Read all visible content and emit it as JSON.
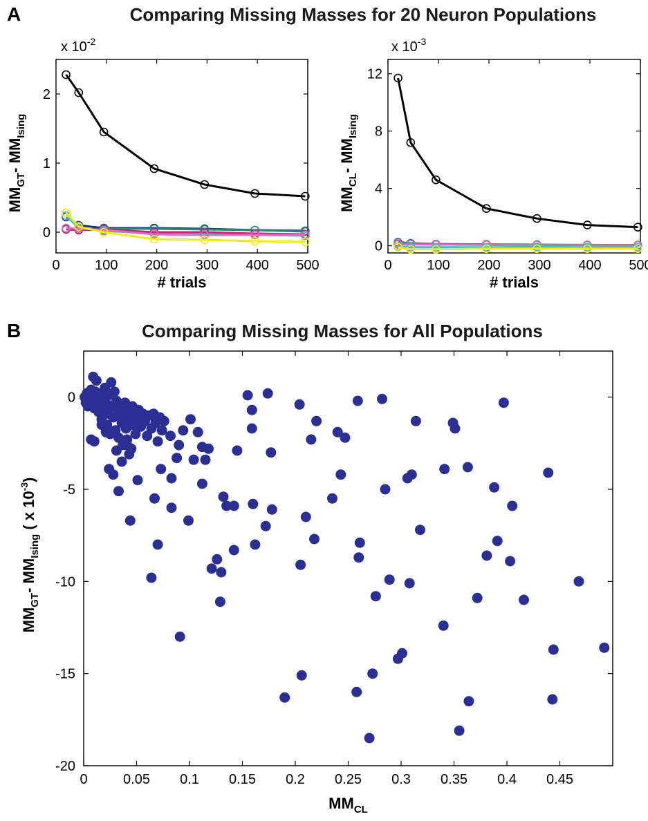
{
  "panel_a": {
    "letter": "A",
    "title": "Comparing Missing Masses for 20 Neuron Populations"
  },
  "panel_b": {
    "letter": "B"
  },
  "chart_data": [
    {
      "type": "line",
      "title": "",
      "xlabel": "# trials",
      "ylabel": "MM_GT - MM_Ising",
      "ylabel_parts": {
        "main1": "MM",
        "sub1": "GT",
        "sep": "- ",
        "main2": "MM",
        "sub2": "Ising"
      },
      "exponent_label": "x 10",
      "exponent_power": "-2",
      "xlim": [
        0,
        500
      ],
      "ylim": [
        -0.3,
        2.5
      ],
      "xticks": [
        0,
        100,
        200,
        300,
        400,
        500
      ],
      "yticks": [
        0,
        1,
        2
      ],
      "x": [
        20,
        45,
        95,
        195,
        295,
        395,
        495
      ],
      "series": [
        {
          "color": "#000000",
          "values": [
            2.28,
            2.02,
            1.45,
            0.92,
            0.69,
            0.56,
            0.52
          ]
        },
        {
          "color": "#1f2a8c",
          "values": [
            0.22,
            0.1,
            0.06,
            0.06,
            0.05,
            0.03,
            0.02
          ]
        },
        {
          "color": "#1f8a6a",
          "values": [
            0.05,
            0.04,
            0.05,
            0.05,
            0.04,
            0.03,
            0.01
          ]
        },
        {
          "color": "#3fb8d8",
          "values": [
            0.24,
            0.06,
            0.02,
            -0.02,
            -0.03,
            -0.04,
            -0.05
          ]
        },
        {
          "color": "#cc2277",
          "values": [
            0.04,
            0.03,
            0.04,
            0.0,
            0.0,
            -0.02,
            -0.03
          ]
        },
        {
          "color": "#d070c0",
          "values": [
            0.06,
            0.05,
            0.03,
            -0.03,
            -0.04,
            -0.04,
            -0.04
          ]
        },
        {
          "color": "#eeee11",
          "values": [
            0.28,
            0.08,
            0.0,
            -0.1,
            -0.11,
            -0.13,
            -0.14
          ]
        }
      ]
    },
    {
      "type": "line",
      "title": "",
      "xlabel": "# trials",
      "ylabel": "MM_CL - MM_Ising",
      "ylabel_parts": {
        "main1": "MM",
        "sub1": "CL",
        "sep": "- ",
        "main2": "MM",
        "sub2": "Ising"
      },
      "exponent_label": "x 10",
      "exponent_power": "-3",
      "xlim": [
        0,
        500
      ],
      "ylim": [
        -0.5,
        13
      ],
      "xticks": [
        0,
        100,
        200,
        300,
        400,
        500
      ],
      "yticks": [
        0,
        4,
        8,
        12
      ],
      "x": [
        20,
        45,
        95,
        195,
        295,
        395,
        495
      ],
      "series": [
        {
          "color": "#000000",
          "values": [
            11.7,
            7.2,
            4.6,
            2.6,
            1.9,
            1.45,
            1.3
          ]
        },
        {
          "color": "#1f8a6a",
          "values": [
            0.25,
            0.18,
            0.12,
            0.1,
            0.08,
            0.06,
            0.05
          ]
        },
        {
          "color": "#cc2277",
          "values": [
            0.15,
            0.12,
            0.1,
            0.08,
            0.06,
            0.05,
            0.04
          ]
        },
        {
          "color": "#d070c0",
          "values": [
            0.1,
            0.1,
            0.08,
            0.06,
            0.05,
            0.04,
            0.03
          ]
        },
        {
          "color": "#3fb8d8",
          "values": [
            -0.05,
            -0.1,
            -0.1,
            -0.1,
            -0.08,
            -0.1,
            -0.1
          ]
        },
        {
          "color": "#eeee11",
          "values": [
            -0.1,
            -0.25,
            -0.25,
            -0.2,
            -0.2,
            -0.2,
            -0.2
          ]
        }
      ]
    },
    {
      "type": "scatter",
      "title": "Comparing Missing Masses for All Populations",
      "xlabel": "MM_CL",
      "xlabel_parts": {
        "main": "MM",
        "sub": "CL"
      },
      "ylabel": "MM_GT - MM_Ising (x 10^-3)",
      "ylabel_parts": {
        "main1": "MM",
        "sub1": "GT",
        "sep": "- ",
        "main2": "MM",
        "sub2": "Ising",
        "unit_pre": "( x 10",
        "unit_exp": "-3",
        "unit_post": ")"
      },
      "xlim": [
        0,
        0.5
      ],
      "ylim": [
        -20,
        2.5
      ],
      "xticks": [
        0,
        0.05,
        0.1,
        0.15,
        0.2,
        0.25,
        0.3,
        0.35,
        0.4,
        0.45
      ],
      "yticks": [
        0,
        -5,
        -10,
        -15,
        -20
      ],
      "color": "#2b2f92",
      "points": [
        [
          0.001,
          0.0
        ],
        [
          0.002,
          -0.3
        ],
        [
          0.003,
          0.2
        ],
        [
          0.004,
          -0.5
        ],
        [
          0.005,
          0.1
        ],
        [
          0.006,
          -0.2
        ],
        [
          0.007,
          0.4
        ],
        [
          0.008,
          -0.1
        ],
        [
          0.009,
          1.1
        ],
        [
          0.01,
          -0.6
        ],
        [
          0.011,
          0.3
        ],
        [
          0.012,
          0.9
        ],
        [
          0.013,
          -0.4
        ],
        [
          0.014,
          -0.8
        ],
        [
          0.015,
          0.2
        ],
        [
          0.016,
          -0.2
        ],
        [
          0.017,
          -1.2
        ],
        [
          0.018,
          0.0
        ],
        [
          0.019,
          -0.7
        ],
        [
          0.02,
          0.5
        ],
        [
          0.021,
          -0.3
        ],
        [
          0.022,
          -1.5
        ],
        [
          0.023,
          0.1
        ],
        [
          0.024,
          -0.9
        ],
        [
          0.025,
          -2.0
        ],
        [
          0.026,
          0.8
        ],
        [
          0.027,
          -0.5
        ],
        [
          0.028,
          -1.1
        ],
        [
          0.029,
          0.3
        ],
        [
          0.03,
          -1.8
        ],
        [
          0.031,
          -0.2
        ],
        [
          0.032,
          -0.6
        ],
        [
          0.033,
          -2.2
        ],
        [
          0.034,
          -1.0
        ],
        [
          0.035,
          -0.4
        ],
        [
          0.036,
          -1.4
        ],
        [
          0.037,
          -2.6
        ],
        [
          0.038,
          -0.8
        ],
        [
          0.039,
          -0.3
        ],
        [
          0.04,
          -1.7
        ],
        [
          0.041,
          -2.3
        ],
        [
          0.042,
          -0.6
        ],
        [
          0.043,
          -1.2
        ],
        [
          0.044,
          -0.9
        ],
        [
          0.045,
          -2.8
        ],
        [
          0.046,
          -0.5
        ],
        [
          0.047,
          -1.5
        ],
        [
          0.048,
          -0.8
        ],
        [
          0.049,
          -2.0
        ],
        [
          0.05,
          -1.1
        ],
        [
          0.052,
          -0.7
        ],
        [
          0.054,
          -1.6
        ],
        [
          0.056,
          -0.9
        ],
        [
          0.058,
          -1.3
        ],
        [
          0.06,
          -2.1
        ],
        [
          0.062,
          -1.0
        ],
        [
          0.064,
          -1.7
        ],
        [
          0.066,
          -0.9
        ],
        [
          0.068,
          -1.4
        ],
        [
          0.07,
          -2.4
        ],
        [
          0.072,
          -1.1
        ],
        [
          0.074,
          -1.8
        ],
        [
          0.076,
          -1.3
        ],
        [
          0.007,
          -2.3
        ],
        [
          0.01,
          -2.4
        ],
        [
          0.017,
          -1.5
        ],
        [
          0.021,
          -1.9
        ],
        [
          0.024,
          -3.9
        ],
        [
          0.028,
          -4.2
        ],
        [
          0.031,
          -2.9
        ],
        [
          0.033,
          -5.1
        ],
        [
          0.036,
          -3.5
        ],
        [
          0.041,
          -2.6
        ],
        [
          0.043,
          -3.1
        ],
        [
          0.044,
          -6.7
        ],
        [
          0.051,
          -4.5
        ],
        [
          0.067,
          -5.5
        ],
        [
          0.07,
          -8.0
        ],
        [
          0.064,
          -9.8
        ],
        [
          0.073,
          -3.9
        ],
        [
          0.082,
          -2.1
        ],
        [
          0.083,
          -6.0
        ],
        [
          0.083,
          -4.4
        ],
        [
          0.088,
          -3.3
        ],
        [
          0.09,
          -2.6
        ],
        [
          0.091,
          -13.0
        ],
        [
          0.094,
          -1.8
        ],
        [
          0.099,
          -6.7
        ],
        [
          0.101,
          -1.2
        ],
        [
          0.104,
          -3.4
        ],
        [
          0.108,
          -1.9
        ],
        [
          0.112,
          -2.7
        ],
        [
          0.112,
          -4.7
        ],
        [
          0.115,
          -3.4
        ],
        [
          0.118,
          -2.8
        ],
        [
          0.121,
          -9.3
        ],
        [
          0.126,
          -8.8
        ],
        [
          0.13,
          -9.5
        ],
        [
          0.129,
          -11.1
        ],
        [
          0.132,
          -5.4
        ],
        [
          0.135,
          -5.9
        ],
        [
          0.142,
          -5.9
        ],
        [
          0.142,
          -8.3
        ],
        [
          0.145,
          -2.9
        ],
        [
          0.155,
          0.1
        ],
        [
          0.159,
          -0.7
        ],
        [
          0.159,
          -1.7
        ],
        [
          0.16,
          -5.8
        ],
        [
          0.162,
          -8.0
        ],
        [
          0.172,
          -7.0
        ],
        [
          0.174,
          0.2
        ],
        [
          0.177,
          -3.0
        ],
        [
          0.178,
          -6.1
        ],
        [
          0.19,
          -16.3
        ],
        [
          0.204,
          -0.4
        ],
        [
          0.205,
          -9.1
        ],
        [
          0.206,
          -15.1
        ],
        [
          0.21,
          -6.5
        ],
        [
          0.215,
          -2.3
        ],
        [
          0.218,
          -7.7
        ],
        [
          0.22,
          -1.3
        ],
        [
          0.235,
          -5.5
        ],
        [
          0.24,
          -1.9
        ],
        [
          0.243,
          -4.2
        ],
        [
          0.247,
          -2.2
        ],
        [
          0.258,
          -16.0
        ],
        [
          0.259,
          -0.2
        ],
        [
          0.26,
          -8.7
        ],
        [
          0.261,
          -7.9
        ],
        [
          0.27,
          -18.5
        ],
        [
          0.273,
          -15.0
        ],
        [
          0.276,
          -10.8
        ],
        [
          0.282,
          -0.1
        ],
        [
          0.285,
          -5.0
        ],
        [
          0.289,
          -9.9
        ],
        [
          0.297,
          -14.2
        ],
        [
          0.301,
          -13.9
        ],
        [
          0.306,
          -4.4
        ],
        [
          0.308,
          -10.1
        ],
        [
          0.31,
          -4.2
        ],
        [
          0.314,
          -1.3
        ],
        [
          0.318,
          -7.2
        ],
        [
          0.34,
          -12.4
        ],
        [
          0.341,
          -3.9
        ],
        [
          0.349,
          -1.4
        ],
        [
          0.351,
          -1.7
        ],
        [
          0.355,
          -18.1
        ],
        [
          0.363,
          -3.8
        ],
        [
          0.364,
          -16.5
        ],
        [
          0.372,
          -10.9
        ],
        [
          0.381,
          -8.6
        ],
        [
          0.388,
          -4.9
        ],
        [
          0.391,
          -7.8
        ],
        [
          0.397,
          -0.3
        ],
        [
          0.403,
          -8.9
        ],
        [
          0.405,
          -5.9
        ],
        [
          0.416,
          -11.0
        ],
        [
          0.439,
          -4.1
        ],
        [
          0.443,
          -16.4
        ],
        [
          0.444,
          -13.7
        ],
        [
          0.468,
          -10.0
        ],
        [
          0.492,
          -13.6
        ]
      ]
    }
  ]
}
